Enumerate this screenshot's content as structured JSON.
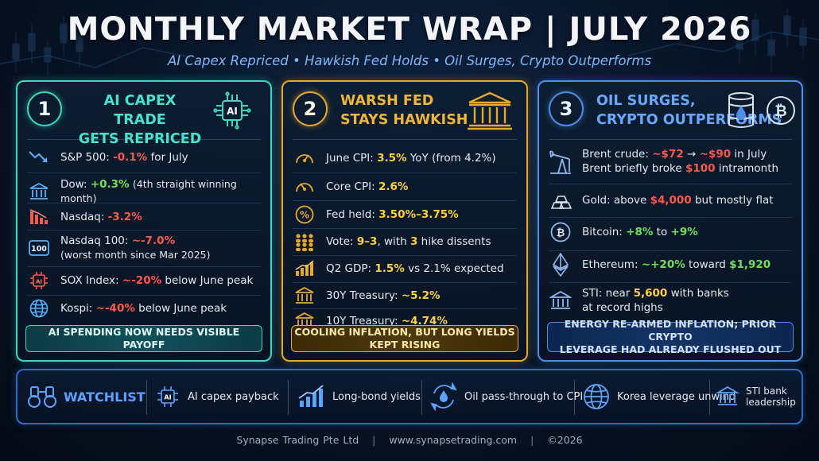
{
  "header": {
    "title": "MONTHLY MARKET WRAP | JULY 2026",
    "subtitle": "AI Capex Repriced • Hawkish Fed Holds • Oil Surges, Crypto Outperforms"
  },
  "panels": [
    {
      "number": "1",
      "title_line1": "AI CAPEX TRADE",
      "title_line2": "GETS REPRICED",
      "icon": "ai-chip-icon",
      "items": [
        {
          "icon": "trend-down-icon",
          "label": "S&P 500:",
          "value": "-0.1%",
          "note": "for July"
        },
        {
          "icon": "bank-icon",
          "label": "Dow:",
          "value": "+0.3%",
          "note": "(4th straight winning month)"
        },
        {
          "icon": "bar-chart-down-icon",
          "label": "Nasdaq:",
          "value": "-3.2%",
          "note": ""
        },
        {
          "icon": "hundred-badge-icon",
          "label": "Nasdaq 100:",
          "value": "~-7.0%",
          "note": "(worst month since Mar 2025)"
        },
        {
          "icon": "ai-chip-icon",
          "label": "SOX Index:",
          "value": "~-20%",
          "note": "below June peak"
        },
        {
          "icon": "globe-icon",
          "label": "Kospi:",
          "value": "~-40%",
          "note": "below June peak"
        }
      ],
      "banner": "AI SPENDING NOW NEEDS VISIBLE PAYOFF"
    },
    {
      "number": "2",
      "title_line1": "WARSH FED",
      "title_line2": "STAYS HAWKISH",
      "icon": "bank-icon",
      "items": [
        {
          "icon": "gauge-icon",
          "label": "June CPI:",
          "value": "3.5%",
          "note": "YoY (from 4.2%)"
        },
        {
          "icon": "gauge-icon",
          "label": "Core CPI:",
          "value": "2.6%",
          "note": ""
        },
        {
          "icon": "percent-icon",
          "label": "Fed held:",
          "value": "3.50%–3.75%",
          "note": ""
        },
        {
          "icon": "people-icon",
          "label": "Vote:",
          "value": "9–3",
          "note_pre": ", with",
          "value2": "3",
          "note": "hike dissents"
        },
        {
          "icon": "bar-chart-up-icon",
          "label": "Q2 GDP:",
          "value": "1.5%",
          "note": "vs 2.1% expected"
        },
        {
          "icon": "bank-icon",
          "label": "30Y Treasury:",
          "value": "~5.2%",
          "note": ""
        },
        {
          "icon": "bank-icon",
          "label": "10Y Treasury:",
          "value": "~4.74%",
          "note": ""
        }
      ],
      "banner": "COOLING INFLATION, BUT LONG YIELDS KEPT RISING"
    },
    {
      "number": "3",
      "title_line1": "OIL SURGES,",
      "title_line2": "CRYPTO OUTPERFORMS",
      "icon": "oil-barrel-icon",
      "icon2": "bitcoin-icon",
      "items": [
        {
          "icon": "oil-pump-icon",
          "line1_label": "Brent crude:",
          "line1_v1": "~$72",
          "line1_arrow": "→",
          "line1_v2": "~$90",
          "line1_note": "in July",
          "line2_label": "Brent briefly broke",
          "line2_value": "$100",
          "line2_note": "intramonth"
        },
        {
          "icon": "gold-bars-icon",
          "label": "Gold: above",
          "value": "$4,000",
          "note": "but mostly flat"
        },
        {
          "icon": "bitcoin-icon",
          "label": "Bitcoin:",
          "value": "+8%",
          "note_mid": "to",
          "value2": "+9%"
        },
        {
          "icon": "ethereum-icon",
          "label": "Ethereum:",
          "value": "~+20%",
          "note_mid": "toward",
          "value2": "$1,920"
        },
        {
          "icon": "bank-icon",
          "label": "STI: near",
          "value": "5,600",
          "note": "with banks",
          "line2": "at record highs"
        }
      ],
      "banner_line1": "ENERGY RE-ARMED INFLATION; PRIOR CRYPTO",
      "banner_line2": "LEVERAGE HAD ALREADY FLUSHED OUT"
    }
  ],
  "watchlist": {
    "label": "WATCHLIST",
    "items": [
      {
        "icon": "ai-chip-icon",
        "label": "AI capex payback"
      },
      {
        "icon": "bar-chart-up-icon",
        "label": "Long-bond yields"
      },
      {
        "icon": "oil-cycle-icon",
        "label": "Oil pass-through to CPI"
      },
      {
        "icon": "globe-icon",
        "label": "Korea leverage unwind"
      },
      {
        "icon": "bank-icon",
        "label": "STI bank leadership"
      }
    ]
  },
  "footer": {
    "company": "Synapse Trading Pte Ltd",
    "sep": "|",
    "website": "www.synapsetrading.com",
    "copyright": "©2026"
  },
  "colors": {
    "teal": "#3fd6c4",
    "gold": "#e6a92e",
    "blue": "#4d8fe8",
    "negative": "#ff5a4a",
    "positive": "#6ee05c",
    "highlight": "#ffd23c"
  }
}
